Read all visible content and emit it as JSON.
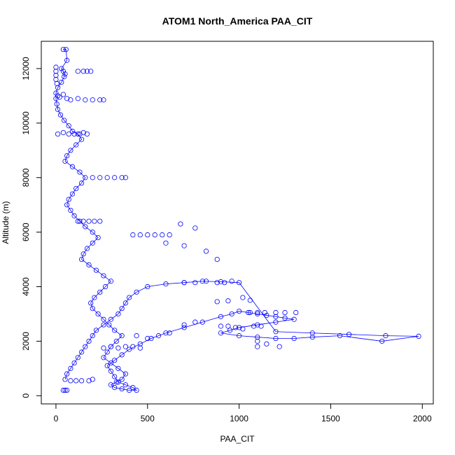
{
  "chart_data": {
    "type": "scatter",
    "title": "ATOM1 North_America PAA_CIT",
    "xlabel": "PAA_CIT",
    "ylabel": "Altitude (m)",
    "xlim": [
      -80,
      2060
    ],
    "ylim": [
      -300,
      13000
    ],
    "xticks": [
      0,
      500,
      1000,
      1500,
      2000
    ],
    "yticks": [
      0,
      2000,
      4000,
      6000,
      8000,
      10000,
      12000
    ],
    "x_tick_labels": [
      "0",
      "500",
      "1000",
      "1500",
      "2000"
    ],
    "y_tick_labels": [
      "0",
      "2000",
      "4000",
      "6000",
      "8000",
      "10000",
      "12000"
    ],
    "series_color": "#0000ff",
    "marker": "open-circle",
    "connected_lines": true,
    "series": [
      {
        "x": [
          40,
          55,
          60,
          30,
          40,
          50,
          45,
          30,
          10,
          0,
          0,
          5,
          10,
          25,
          45,
          70,
          90,
          120,
          140,
          110,
          80,
          60,
          50,
          90,
          130,
          160,
          140,
          110,
          90,
          70,
          60,
          80,
          100,
          130,
          160,
          200,
          230,
          200,
          170,
          150,
          140,
          180,
          220,
          260,
          300,
          270,
          240,
          210,
          190,
          200,
          230,
          260,
          290,
          320,
          360,
          330,
          300,
          280,
          260,
          300,
          340,
          380,
          360,
          330,
          300,
          320,
          360,
          400,
          440,
          420,
          380,
          340,
          320,
          300,
          280,
          320,
          360,
          400,
          460,
          520,
          600,
          700,
          800,
          900,
          960,
          1000,
          1050,
          1100,
          1150,
          1200,
          1250,
          1300,
          1200,
          1100,
          1000,
          950,
          900,
          1000,
          1100,
          1200,
          1300,
          1400,
          1550,
          1780,
          1980,
          1800,
          1600,
          1400,
          1200,
          1000,
          900,
          800,
          700,
          600,
          500,
          440,
          400,
          380,
          360,
          340,
          300,
          260,
          220,
          200,
          180,
          160,
          140,
          120,
          100,
          80,
          60,
          50
        ],
        "y": [
          12700,
          12700,
          12300,
          12000,
          11900,
          11800,
          11700,
          11500,
          11300,
          11100,
          10900,
          10700,
          10500,
          10300,
          10100,
          9900,
          9700,
          9600,
          9400,
          9200,
          9000,
          8800,
          8600,
          8400,
          8200,
          8000,
          7800,
          7600,
          7400,
          7200,
          7000,
          6800,
          6600,
          6400,
          6200,
          6000,
          5800,
          5600,
          5400,
          5200,
          5000,
          4800,
          4600,
          4400,
          4200,
          4000,
          3800,
          3600,
          3400,
          3200,
          3000,
          2800,
          2600,
          2400,
          2200,
          2000,
          1800,
          1600,
          1400,
          1200,
          1000,
          800,
          600,
          500,
          400,
          300,
          250,
          200,
          200,
          300,
          400,
          500,
          700,
          900,
          1100,
          1300,
          1500,
          1700,
          1900,
          2100,
          2300,
          2500,
          2700,
          2900,
          3000,
          3100,
          3050,
          3000,
          2950,
          2900,
          2850,
          2800,
          2700,
          2600,
          2500,
          2400,
          2300,
          2200,
          2150,
          2100,
          2100,
          2150,
          2200,
          2000,
          2180,
          2200,
          2250,
          2300,
          2350,
          4150,
          4180,
          4200,
          4150,
          4100,
          4000,
          3800,
          3600,
          3400,
          3200,
          3000,
          2800,
          2600,
          2400,
          2200,
          2000,
          1800,
          1600,
          1400,
          1200,
          1000,
          800,
          600
        ],
        "extra_points": [
          [
            0,
            12050
          ],
          [
            0,
            11900
          ],
          [
            0,
            11750
          ],
          [
            0,
            11600
          ],
          [
            5,
            11450
          ],
          [
            10,
            11000
          ],
          [
            20,
            10950
          ],
          [
            40,
            11050
          ],
          [
            60,
            10900
          ],
          [
            80,
            10850
          ],
          [
            120,
            10900
          ],
          [
            160,
            10850
          ],
          [
            200,
            10850
          ],
          [
            240,
            10850
          ],
          [
            260,
            10850
          ],
          [
            10,
            9600
          ],
          [
            40,
            9650
          ],
          [
            70,
            9600
          ],
          [
            100,
            9600
          ],
          [
            130,
            9600
          ],
          [
            150,
            9650
          ],
          [
            170,
            9600
          ],
          [
            120,
            11900
          ],
          [
            150,
            11900
          ],
          [
            170,
            11900
          ],
          [
            190,
            11900
          ],
          [
            200,
            8000
          ],
          [
            240,
            8000
          ],
          [
            280,
            8000
          ],
          [
            320,
            8000
          ],
          [
            360,
            8000
          ],
          [
            380,
            8000
          ],
          [
            120,
            6400
          ],
          [
            150,
            6400
          ],
          [
            180,
            6400
          ],
          [
            210,
            6400
          ],
          [
            240,
            6400
          ],
          [
            420,
            5900
          ],
          [
            460,
            5900
          ],
          [
            500,
            5900
          ],
          [
            540,
            5900
          ],
          [
            580,
            5900
          ],
          [
            620,
            5900
          ],
          [
            680,
            6300
          ],
          [
            760,
            6150
          ],
          [
            600,
            5600
          ],
          [
            700,
            5500
          ],
          [
            820,
            5300
          ],
          [
            880,
            5000
          ],
          [
            700,
            4150
          ],
          [
            760,
            4150
          ],
          [
            820,
            4200
          ],
          [
            880,
            4150
          ],
          [
            920,
            4150
          ],
          [
            960,
            4200
          ],
          [
            1020,
            3600
          ],
          [
            1060,
            3500
          ],
          [
            880,
            3450
          ],
          [
            940,
            3480
          ],
          [
            1060,
            3050
          ],
          [
            1100,
            3050
          ],
          [
            1140,
            3050
          ],
          [
            1200,
            3050
          ],
          [
            1250,
            3050
          ],
          [
            1310,
            3050
          ],
          [
            900,
            2550
          ],
          [
            940,
            2550
          ],
          [
            980,
            2500
          ],
          [
            1020,
            2450
          ],
          [
            1080,
            2550
          ],
          [
            1120,
            2550
          ],
          [
            1100,
            1800
          ],
          [
            1150,
            1900
          ],
          [
            1220,
            1800
          ],
          [
            1100,
            2000
          ],
          [
            440,
            2200
          ],
          [
            500,
            2100
          ],
          [
            560,
            2200
          ],
          [
            620,
            2300
          ],
          [
            700,
            2600
          ],
          [
            760,
            2700
          ],
          [
            260,
            1750
          ],
          [
            300,
            1800
          ],
          [
            340,
            1750
          ],
          [
            380,
            1800
          ],
          [
            420,
            1800
          ],
          [
            460,
            1750
          ],
          [
            80,
            550
          ],
          [
            110,
            550
          ],
          [
            140,
            550
          ],
          [
            180,
            550
          ],
          [
            200,
            600
          ],
          [
            60,
            200
          ],
          [
            50,
            200
          ],
          [
            40,
            200
          ]
        ]
      }
    ]
  }
}
